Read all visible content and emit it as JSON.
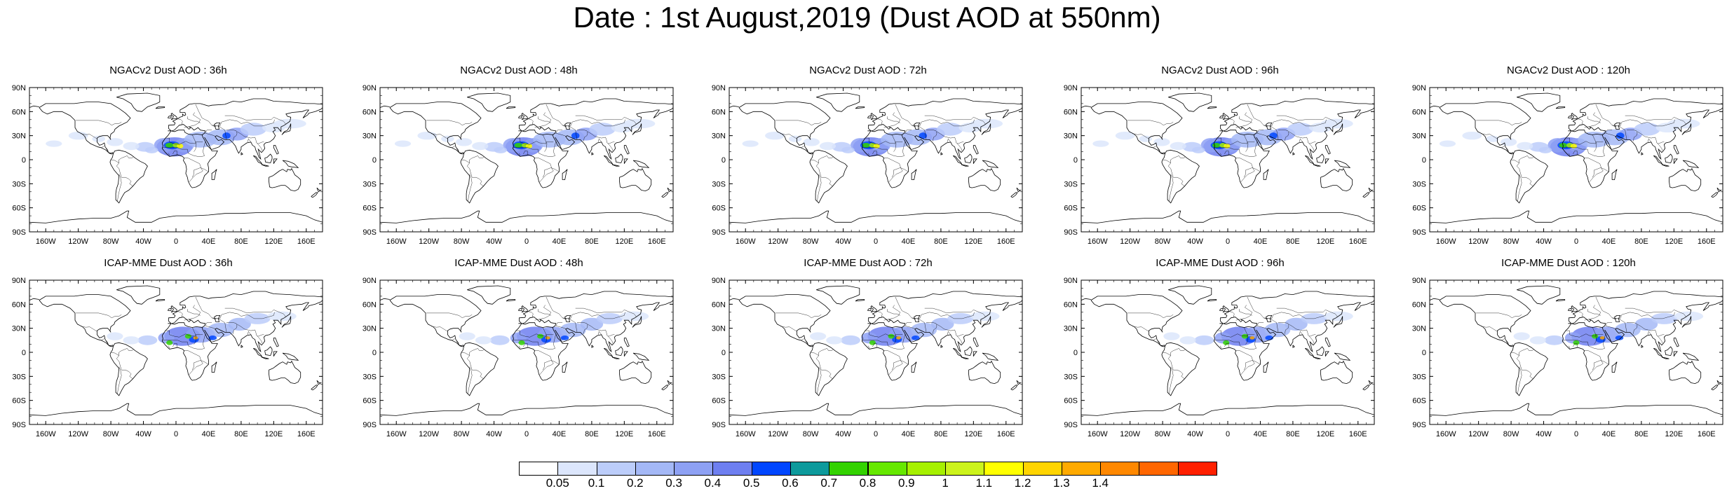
{
  "title": "Date : 1st August,2019 (Dust AOD at 550nm)",
  "lat_labels": [
    "90N",
    "60N",
    "30N",
    "0",
    "30S",
    "60S",
    "90S"
  ],
  "lon_labels": [
    "160W",
    "120W",
    "80W",
    "40W",
    "0",
    "40E",
    "80E",
    "120E",
    "160E"
  ],
  "panels": [
    {
      "title": "NGACv2 Dust AOD : 36h"
    },
    {
      "title": "NGACv2 Dust AOD : 48h"
    },
    {
      "title": "NGACv2 Dust AOD : 72h"
    },
    {
      "title": "NGACv2 Dust AOD : 96h"
    },
    {
      "title": "NGACv2 Dust AOD : 120h"
    },
    {
      "title": "ICAP-MME Dust AOD : 36h"
    },
    {
      "title": "ICAP-MME Dust AOD : 48h"
    },
    {
      "title": "ICAP-MME Dust AOD : 72h"
    },
    {
      "title": "ICAP-MME Dust AOD : 96h"
    },
    {
      "title": "ICAP-MME Dust AOD : 120h"
    }
  ],
  "colorbar": {
    "colors": [
      "#ffffff",
      "#dce6fc",
      "#bccdfa",
      "#a4b8f6",
      "#8ea1f4",
      "#6e7ff0",
      "#0046ff",
      "#0d9a9c",
      "#33d200",
      "#66e800",
      "#a6f000",
      "#ccf31c",
      "#ffff00",
      "#ffd400",
      "#ffaa00",
      "#ff8800",
      "#ff6600",
      "#ff2000"
    ],
    "labels": [
      "0.05",
      "0.1",
      "0.2",
      "0.3",
      "0.4",
      "0.5",
      "0.6",
      "0.7",
      "0.8",
      "0.9",
      "1",
      "1.1",
      "1.2",
      "1.3",
      "1.4"
    ]
  }
}
